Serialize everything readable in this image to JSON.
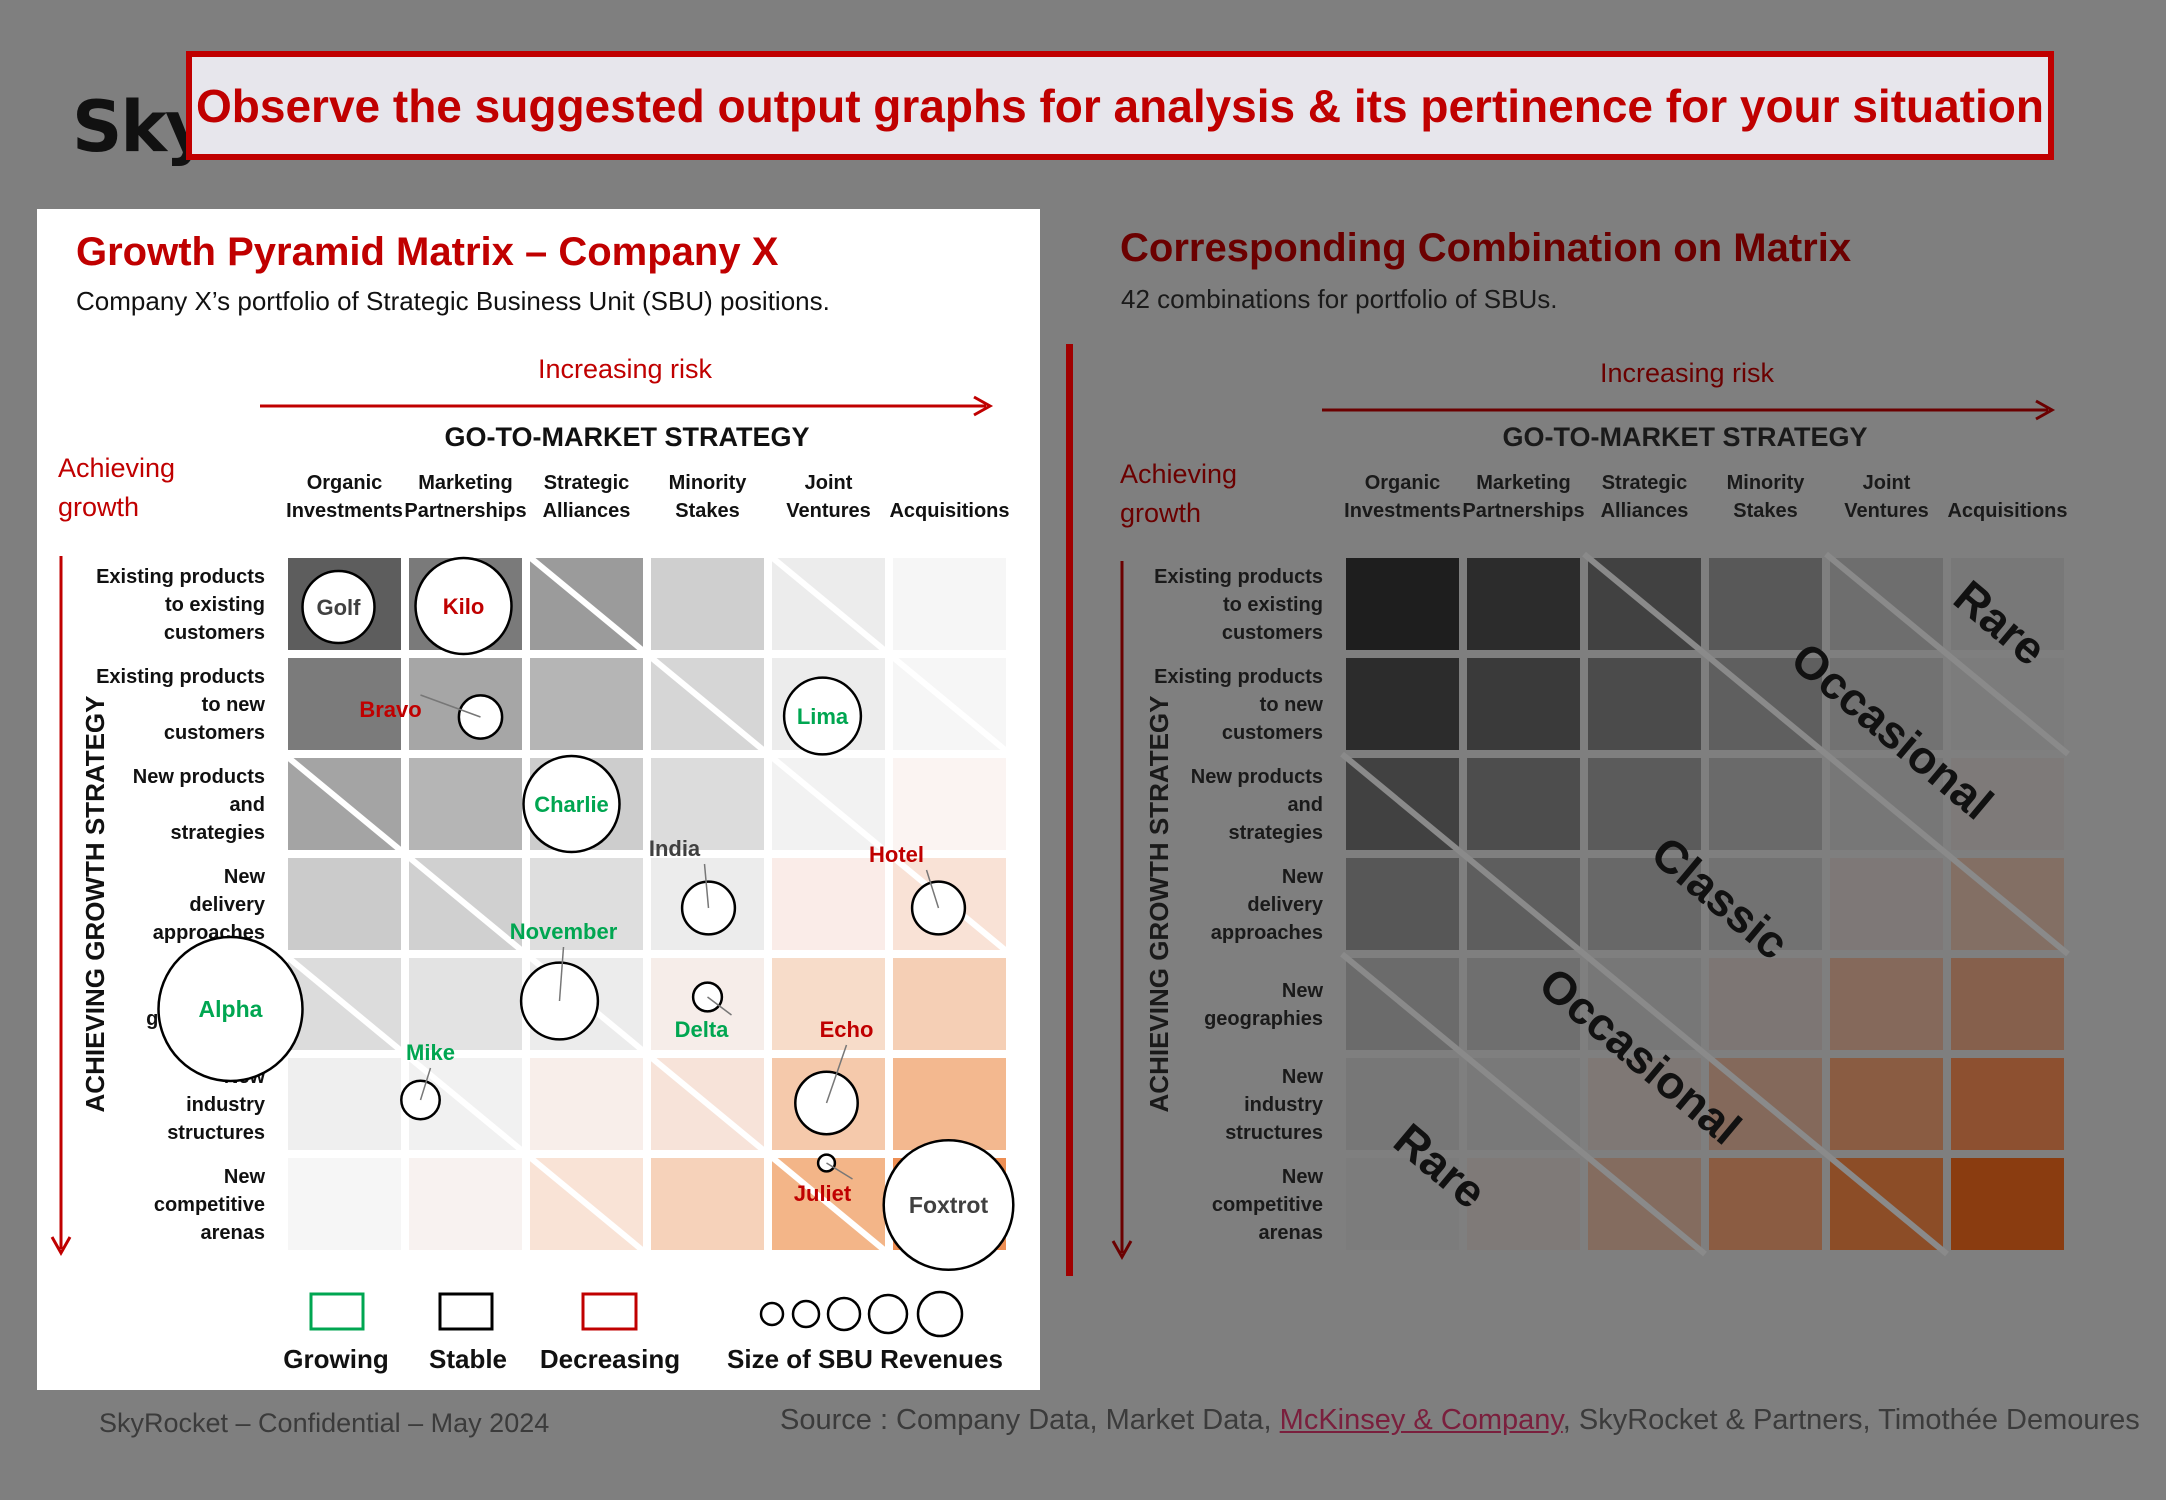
{
  "logo": "Sky",
  "banner": "Observe the suggested output graphs for analysis & its pertinence for your situation",
  "left_panel": {
    "title": "Growth Pyramid Matrix – Company X",
    "subtitle": "Company X’s portfolio of Strategic Business Unit (SBU) positions."
  },
  "right_panel": {
    "title": "Corresponding Combination on Matrix",
    "subtitle": "42 combinations for portfolio of SBUs."
  },
  "axes": {
    "risk_label": "Increasing risk",
    "growth_label_1": "Achieving",
    "growth_label_2": "growth",
    "column_header": "GO-TO-MARKET STRATEGY",
    "row_header": "ACHIEVING GROWTH STRATEGY",
    "columns": [
      [
        "Organic",
        "Investments"
      ],
      [
        "Marketing",
        "Partnerships"
      ],
      [
        "Strategic",
        "Alliances"
      ],
      [
        "Minority",
        "Stakes"
      ],
      [
        "Joint",
        "Ventures"
      ],
      [
        "",
        "Acquisitions"
      ]
    ],
    "rows": [
      [
        "Existing products",
        "to existing",
        "customers"
      ],
      [
        "Existing products",
        "to new",
        "customers"
      ],
      [
        "New products",
        "and",
        "strategies"
      ],
      [
        "New",
        "delivery",
        "approaches"
      ],
      [
        "",
        "New",
        "geographies"
      ],
      [
        "New",
        "industry",
        "structures"
      ],
      [
        "New",
        "competitive",
        "arenas"
      ]
    ]
  },
  "chart_data": {
    "type": "scatter",
    "title": "Growth Pyramid Matrix – Company X",
    "xlabel": "GO-TO-MARKET STRATEGY",
    "ylabel": "ACHIEVING GROWTH STRATEGY",
    "categories_x": [
      "Organic Investments",
      "Marketing Partnerships",
      "Strategic Alliances",
      "Minority Stakes",
      "Joint Ventures",
      "Acquisitions"
    ],
    "categories_y": [
      "Existing products to existing customers",
      "Existing products to new customers",
      "New products and strategies",
      "New delivery approaches",
      "New geographies",
      "New industry structures",
      "New competitive arenas"
    ],
    "status_colors": {
      "Growing": "#00a651",
      "Stable": "#404040",
      "Decreasing": "#c00000"
    },
    "points": [
      {
        "name": "Golf",
        "col": 1,
        "row": 1,
        "status": "Stable",
        "size": 3
      },
      {
        "name": "Kilo",
        "col": 2,
        "row": 1,
        "status": "Decreasing",
        "size": 4
      },
      {
        "name": "Bravo",
        "col": 2,
        "row": 2,
        "status": "Decreasing",
        "size": 1.8
      },
      {
        "name": "Lima",
        "col": 5,
        "row": 2,
        "status": "Growing",
        "size": 3.2
      },
      {
        "name": "Charlie",
        "col": 3,
        "row": 3,
        "status": "Growing",
        "size": 4
      },
      {
        "name": "India",
        "col": 4,
        "row": 4,
        "status": "Stable",
        "size": 2.2
      },
      {
        "name": "Hotel",
        "col": 6,
        "row": 4,
        "status": "Decreasing",
        "size": 2.2
      },
      {
        "name": "Alpha",
        "col": 1,
        "row": 5,
        "status": "Growing",
        "size": 6
      },
      {
        "name": "November",
        "col": 3,
        "row": 5,
        "status": "Growing",
        "size": 3.2
      },
      {
        "name": "Delta",
        "col": 4,
        "row": 5,
        "status": "Growing",
        "size": 1.2
      },
      {
        "name": "Echo",
        "col": 5,
        "row": 6,
        "status": "Decreasing",
        "size": 2.6
      },
      {
        "name": "Mike",
        "col": 2,
        "row": 6,
        "status": "Growing",
        "size": 1.6
      },
      {
        "name": "Juliet",
        "col": 5,
        "row": 7,
        "status": "Decreasing",
        "size": 0.7
      },
      {
        "name": "Foxtrot",
        "col": 6,
        "row": 7,
        "status": "Stable",
        "size": 5.4
      }
    ],
    "zones": [
      "Rare",
      "Occasional",
      "Classic",
      "Occasional",
      "Rare"
    ]
  },
  "legend": {
    "growing": "Growing",
    "stable": "Stable",
    "decreasing": "Decreasing",
    "size": "Size of SBU Revenues"
  },
  "footer": {
    "confidential": "SkyRocket – Confidential – May 2024",
    "source_prefix": "Source : Company Data, Market Data, ",
    "source_link": "McKinsey & Company",
    "source_suffix": ", SkyRocket & Partners, Timothée Demoures"
  }
}
